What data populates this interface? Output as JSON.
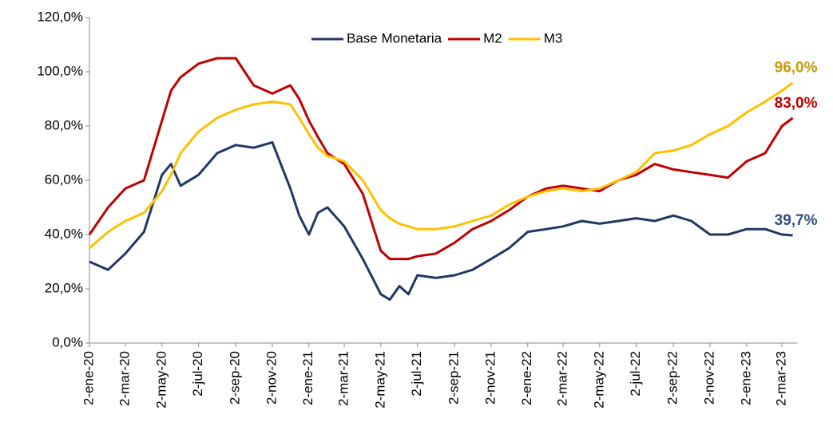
{
  "chart_data": {
    "type": "line",
    "x": [
      "2020-01-02",
      "2020-02-02",
      "2020-03-02",
      "2020-04-02",
      "2020-05-02",
      "2020-05-17",
      "2020-06-02",
      "2020-07-02",
      "2020-08-02",
      "2020-09-02",
      "2020-10-02",
      "2020-11-02",
      "2020-12-02",
      "2020-12-17",
      "2021-01-02",
      "2021-01-17",
      "2021-02-02",
      "2021-03-02",
      "2021-04-02",
      "2021-05-02",
      "2021-05-17",
      "2021-06-02",
      "2021-06-17",
      "2021-07-02",
      "2021-08-02",
      "2021-09-02",
      "2021-10-02",
      "2021-11-02",
      "2021-12-02",
      "2022-01-02",
      "2022-02-02",
      "2022-03-02",
      "2022-04-02",
      "2022-05-02",
      "2022-06-02",
      "2022-07-02",
      "2022-08-02",
      "2022-09-02",
      "2022-10-02",
      "2022-11-02",
      "2022-12-02",
      "2023-01-02",
      "2023-02-02",
      "2023-03-02",
      "2023-03-20"
    ],
    "series": [
      {
        "name": "Base Monetaria",
        "color": "#1f3864",
        "label_color": "#2f4f86",
        "end_label": "39,7%",
        "values": [
          30,
          27,
          33,
          41,
          62,
          66,
          58,
          62,
          70,
          73,
          72,
          74,
          57,
          47,
          40,
          48,
          50,
          43,
          31,
          18,
          16,
          21,
          18,
          25,
          24,
          25,
          27,
          31,
          35,
          41,
          42,
          43,
          45,
          44,
          45,
          46,
          45,
          47,
          45,
          40,
          40,
          42,
          42,
          40,
          39.7
        ]
      },
      {
        "name": "M2",
        "color": "#c00000",
        "label_color": "#c00000",
        "end_label": "83,0%",
        "values": [
          40,
          50,
          57,
          60,
          82,
          93,
          98,
          103,
          105,
          105,
          95,
          92,
          95,
          90,
          82,
          76,
          70,
          66,
          55,
          34,
          31,
          31,
          31,
          32,
          33,
          37,
          42,
          45,
          49,
          54,
          57,
          58,
          57,
          56,
          60,
          62,
          66,
          64,
          63,
          62,
          61,
          67,
          70,
          80,
          83
        ]
      },
      {
        "name": "M3",
        "color": "#ffc000",
        "label_color": "#c99a06",
        "end_label": "96,0%",
        "values": [
          35,
          41,
          45,
          48,
          56,
          62,
          70,
          78,
          83,
          86,
          88,
          89,
          88,
          83,
          77,
          72,
          69,
          67,
          60,
          49,
          46,
          44,
          43,
          42,
          42,
          43,
          45,
          47,
          51,
          54,
          56,
          57,
          56,
          57,
          60,
          63,
          70,
          71,
          73,
          77,
          80,
          85,
          89,
          93,
          96
        ]
      }
    ],
    "xticks": [
      {
        "value": "2020-01-02",
        "label": "2-ene-20"
      },
      {
        "value": "2020-03-02",
        "label": "2-mar-20"
      },
      {
        "value": "2020-05-02",
        "label": "2-may-20"
      },
      {
        "value": "2020-07-02",
        "label": "2-jul-20"
      },
      {
        "value": "2020-09-02",
        "label": "2-sep-20"
      },
      {
        "value": "2020-11-02",
        "label": "2-nov-20"
      },
      {
        "value": "2021-01-02",
        "label": "2-ene-21"
      },
      {
        "value": "2021-03-02",
        "label": "2-mar-21"
      },
      {
        "value": "2021-05-02",
        "label": "2-may-21"
      },
      {
        "value": "2021-07-02",
        "label": "2-jul-21"
      },
      {
        "value": "2021-09-02",
        "label": "2-sep-21"
      },
      {
        "value": "2021-11-02",
        "label": "2-nov-21"
      },
      {
        "value": "2022-01-02",
        "label": "2-ene-22"
      },
      {
        "value": "2022-03-02",
        "label": "2-mar-22"
      },
      {
        "value": "2022-05-02",
        "label": "2-may-22"
      },
      {
        "value": "2022-07-02",
        "label": "2-jul-22"
      },
      {
        "value": "2022-09-02",
        "label": "2-sep-22"
      },
      {
        "value": "2022-11-02",
        "label": "2-nov-22"
      },
      {
        "value": "2023-01-02",
        "label": "2-ene-23"
      },
      {
        "value": "2023-03-02",
        "label": "2-mar-23"
      }
    ],
    "ylim": [
      0,
      120
    ],
    "yticks": [
      {
        "value": 0,
        "label": "0,0%"
      },
      {
        "value": 20,
        "label": "20,0%"
      },
      {
        "value": 40,
        "label": "40,0%"
      },
      {
        "value": 60,
        "label": "60,0%"
      },
      {
        "value": 80,
        "label": "80,0%"
      },
      {
        "value": 100,
        "label": "100,0%"
      },
      {
        "value": 120,
        "label": "120,0%"
      }
    ],
    "legend": "top"
  }
}
